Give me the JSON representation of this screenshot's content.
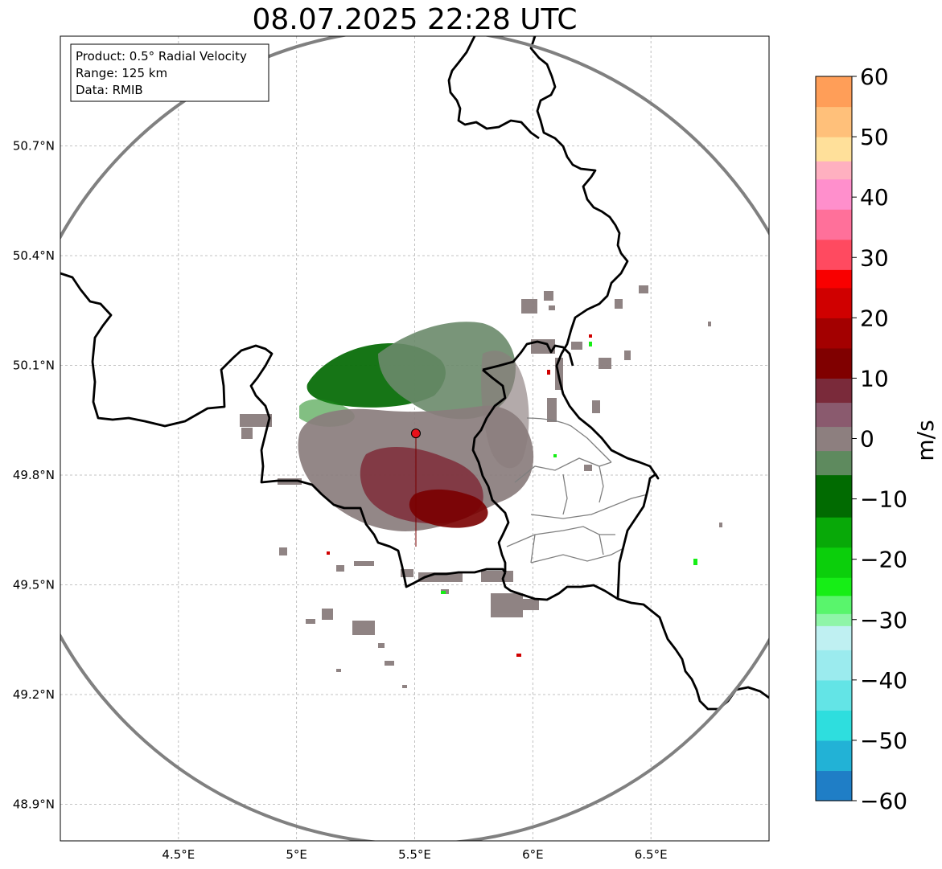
{
  "title": "08.07.2025 22:28 UTC",
  "info_box": {
    "line1": "Product: 0.5° Radial Velocity",
    "line2": "Range: 125 km",
    "line3": "Data: RMIB"
  },
  "map": {
    "lon_ticks": [
      {
        "value": 4.5,
        "label": "4.5°E"
      },
      {
        "value": 5.0,
        "label": "5°E"
      },
      {
        "value": 5.5,
        "label": "5.5°E"
      },
      {
        "value": 6.0,
        "label": "6°E"
      },
      {
        "value": 6.5,
        "label": "6.5°E"
      }
    ],
    "lat_ticks": [
      {
        "value": 50.7,
        "label": "50.7°N"
      },
      {
        "value": 50.4,
        "label": "50.4°N"
      },
      {
        "value": 50.1,
        "label": "50.1°N"
      },
      {
        "value": 49.8,
        "label": "49.8°N"
      },
      {
        "value": 49.5,
        "label": "49.5°N"
      },
      {
        "value": 49.2,
        "label": "49.2°N"
      },
      {
        "value": 48.9,
        "label": "48.9°N"
      }
    ],
    "lon_range": [
      4.0,
      7.0
    ],
    "lat_range": [
      48.8,
      51.0
    ],
    "grid": true,
    "radar_site": {
      "lon": 5.505,
      "lat": 49.914,
      "color": "#e8101a"
    },
    "range_ring_km": 125,
    "border_color": "#000000",
    "admin_border_color": "#7f7f7f",
    "ring_color": "#808080"
  },
  "colorbar": {
    "label": "m/s",
    "min": -60,
    "max": 60,
    "tick_values": [
      60,
      50,
      40,
      30,
      20,
      10,
      0,
      -10,
      -20,
      -30,
      -40,
      -50,
      -60
    ],
    "tick_labels": [
      "60",
      "50",
      "40",
      "30",
      "20",
      "10",
      "0",
      "−10",
      "−20",
      "−30",
      "−40",
      "−50",
      "−60"
    ],
    "stops": [
      {
        "from": -60,
        "to": -55,
        "color": "#1f7ec6"
      },
      {
        "from": -55,
        "to": -50,
        "color": "#22b2d6"
      },
      {
        "from": -50,
        "to": -45,
        "color": "#2edede"
      },
      {
        "from": -45,
        "to": -40,
        "color": "#63e4e6"
      },
      {
        "from": -40,
        "to": -35,
        "color": "#9bebee"
      },
      {
        "from": -35,
        "to": -31,
        "color": "#bff0f2"
      },
      {
        "from": -31,
        "to": -29,
        "color": "#8ff5a8"
      },
      {
        "from": -29,
        "to": -26,
        "color": "#59f56c"
      },
      {
        "from": -26,
        "to": -23,
        "color": "#16ee16"
      },
      {
        "from": -23,
        "to": -18,
        "color": "#0bcf0b"
      },
      {
        "from": -18,
        "to": -13,
        "color": "#08a908"
      },
      {
        "from": -13,
        "to": -6,
        "color": "#016b01"
      },
      {
        "from": -6,
        "to": -2,
        "color": "#5e8a5e"
      },
      {
        "from": -2,
        "to": 2,
        "color": "#8d7f7f"
      },
      {
        "from": 2,
        "to": 6,
        "color": "#8a5a6e"
      },
      {
        "from": 6,
        "to": 10,
        "color": "#7a2a3a"
      },
      {
        "from": 10,
        "to": 15,
        "color": "#800000"
      },
      {
        "from": 15,
        "to": 20,
        "color": "#a30000"
      },
      {
        "from": 20,
        "to": 25,
        "color": "#d00000"
      },
      {
        "from": 25,
        "to": 28,
        "color": "#f90000"
      },
      {
        "from": 28,
        "to": 33,
        "color": "#ff4a60"
      },
      {
        "from": 33,
        "to": 38,
        "color": "#ff709a"
      },
      {
        "from": 38,
        "to": 43,
        "color": "#ff8fcc"
      },
      {
        "from": 43,
        "to": 46,
        "color": "#ffb0c0"
      },
      {
        "from": 46,
        "to": 50,
        "color": "#ffe09a"
      },
      {
        "from": 50,
        "to": 55,
        "color": "#ffc07a"
      },
      {
        "from": 55,
        "to": 60,
        "color": "#ff9e58"
      }
    ]
  }
}
